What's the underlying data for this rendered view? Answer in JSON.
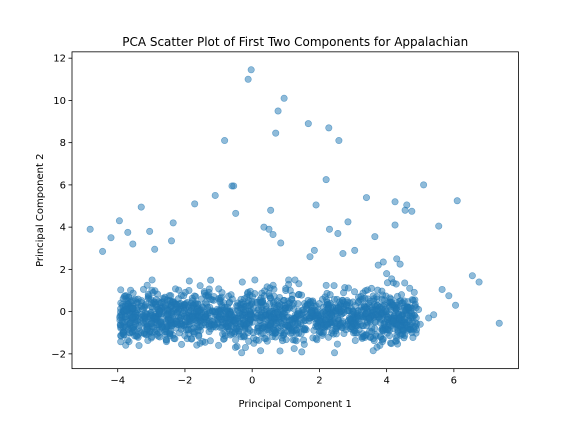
{
  "chart_data": {
    "type": "scatter",
    "title": "PCA Scatter Plot of First Two Components for Appalachian",
    "xlabel": "Principal Component 1",
    "ylabel": "Principal Component 2",
    "xlim": [
      -5.36,
      7.92
    ],
    "ylim": [
      -2.7,
      12.3
    ],
    "xticks": [
      -4,
      -2,
      0,
      2,
      4,
      6
    ],
    "xtick_labels": [
      "−4",
      "−2",
      "0",
      "2",
      "4",
      "6"
    ],
    "yticks": [
      -2,
      0,
      2,
      4,
      6,
      8,
      10,
      12
    ],
    "ytick_labels": [
      "−2",
      "0",
      "2",
      "4",
      "6",
      "8",
      "10",
      "12"
    ],
    "grid": false,
    "marker_color": "#1f77b4",
    "marker_alpha": 0.5,
    "series": [
      {
        "x": [
          -0.03,
          -0.12,
          0.95,
          0.77,
          0.7,
          1.67,
          2.28,
          2.58,
          -0.82,
          -0.6,
          -0.55,
          2.2,
          -1.1,
          1.9,
          0.55,
          -0.49,
          -1.71,
          -3.3,
          -4.82,
          -3.95,
          -4.2,
          -4.45,
          -3.55,
          -2.35,
          -3.05,
          -3.7,
          -2.4,
          -2.9,
          0.35,
          0.62,
          0.5,
          0.85,
          1.85,
          1.72,
          3.4,
          4.25,
          4.25,
          4.6,
          4.55,
          4.75,
          5.1,
          5.55,
          6.1,
          2.3,
          2.55,
          2.7,
          3.05,
          3.65,
          2.85,
          3.75,
          3.9,
          4.0,
          4.3,
          4.4,
          4.15,
          5.85,
          5.65,
          6.55,
          6.75,
          7.35,
          6.05,
          5.25,
          5.4,
          4.85,
          4.95,
          4.1,
          3.55,
          4.5,
          4.7,
          5.0,
          3.9,
          3.8,
          3.6,
          -0.2,
          0.25,
          0.05,
          0.45,
          -0.45,
          -0.25,
          1.25,
          1.55,
          -1.0,
          -1.4,
          -2.1,
          -2.55,
          -2.75,
          -1.8,
          -1.55,
          -3.0,
          -3.45,
          -3.85,
          -1.9,
          -0.9,
          0.15,
          1.05,
          1.35,
          2.0,
          2.45
        ],
        "y": [
          11.45,
          11.0,
          10.1,
          9.5,
          8.45,
          8.9,
          8.7,
          8.1,
          8.1,
          5.95,
          5.95,
          6.25,
          5.5,
          5.05,
          4.8,
          4.65,
          5.1,
          4.95,
          3.9,
          4.3,
          3.5,
          2.85,
          3.2,
          4.2,
          3.8,
          3.75,
          3.35,
          2.95,
          4.0,
          3.65,
          3.9,
          3.25,
          2.9,
          2.6,
          5.4,
          5.2,
          4.1,
          5.05,
          4.8,
          4.75,
          6.0,
          4.05,
          5.25,
          3.9,
          3.7,
          2.75,
          2.9,
          3.55,
          4.25,
          2.2,
          2.35,
          1.8,
          2.5,
          2.25,
          1.55,
          0.75,
          1.05,
          1.7,
          1.4,
          -0.55,
          0.3,
          -0.3,
          -0.15,
          0.35,
          0.1,
          0.65,
          1.1,
          -0.9,
          -0.2,
          -0.6,
          -1.3,
          -1.6,
          -1.85,
          -1.7,
          -1.85,
          -1.5,
          -1.4,
          -1.65,
          -1.2,
          -1.75,
          -1.55,
          -1.6,
          -1.45,
          -1.55,
          -1.35,
          -1.2,
          -1.3,
          -1.5,
          -1.25,
          -1.15,
          -1.05,
          -0.85,
          -0.75,
          -0.95,
          -0.65,
          -0.55,
          -0.45,
          -1.95
        ]
      }
    ],
    "dense_cloud": {
      "x_range": [
        -3.95,
        4.9
      ],
      "y_center": -0.3,
      "y_spread": 0.85,
      "count": 1500
    }
  }
}
